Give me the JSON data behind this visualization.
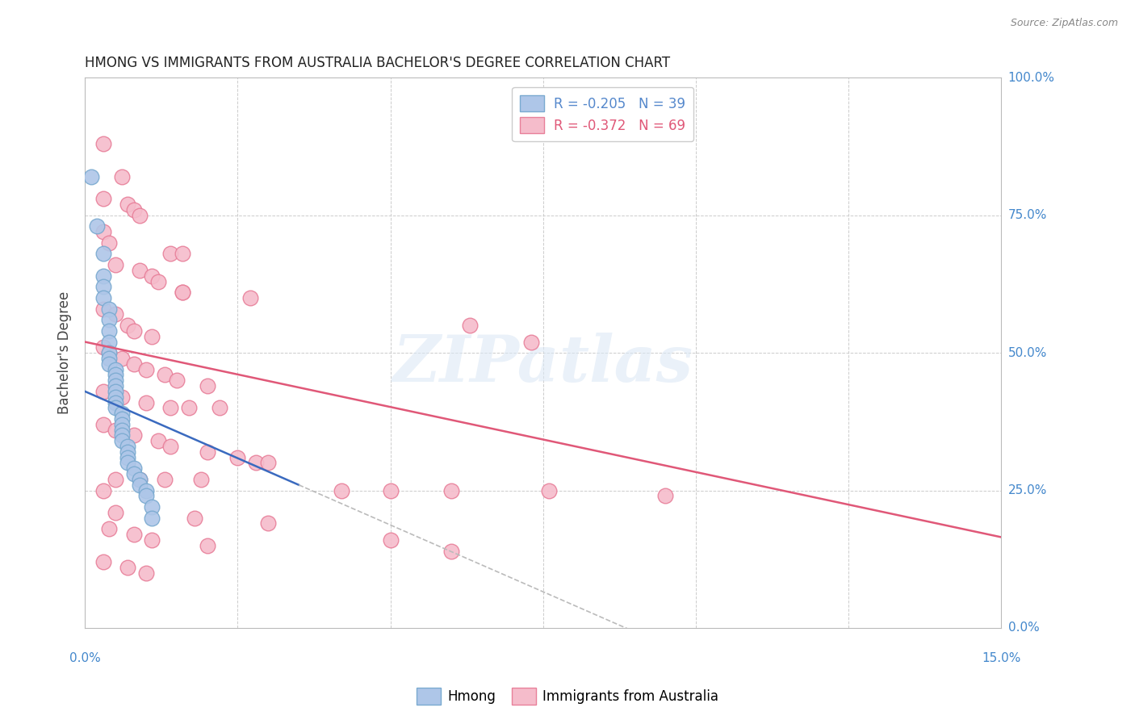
{
  "title": "HMONG VS IMMIGRANTS FROM AUSTRALIA BACHELOR'S DEGREE CORRELATION CHART",
  "source": "Source: ZipAtlas.com",
  "ylabel": "Bachelor's Degree",
  "xmin": 0.0,
  "xmax": 0.15,
  "ymin": 0.0,
  "ymax": 1.0,
  "watermark_text": "ZIPatlas",
  "hmong_color": "#aec6e8",
  "hmong_edge": "#7aaad0",
  "australia_color": "#f5bccb",
  "australia_edge": "#e8809a",
  "hmong_trend_color": "#3a6abf",
  "hmong_trend_dash_color": "#bbbbbb",
  "australia_trend_color": "#e05878",
  "legend_text1": "R = -0.205   N = 39",
  "legend_text2": "R = -0.372   N = 69",
  "legend_color1": "#5588cc",
  "legend_color2": "#e05878",
  "bottom_legend1": "Hmong",
  "bottom_legend2": "Immigrants from Australia",
  "hmong_data": [
    [
      0.001,
      0.82
    ],
    [
      0.002,
      0.73
    ],
    [
      0.003,
      0.68
    ],
    [
      0.003,
      0.64
    ],
    [
      0.003,
      0.62
    ],
    [
      0.003,
      0.6
    ],
    [
      0.004,
      0.58
    ],
    [
      0.004,
      0.56
    ],
    [
      0.004,
      0.54
    ],
    [
      0.004,
      0.52
    ],
    [
      0.004,
      0.5
    ],
    [
      0.004,
      0.49
    ],
    [
      0.004,
      0.48
    ],
    [
      0.005,
      0.47
    ],
    [
      0.005,
      0.46
    ],
    [
      0.005,
      0.45
    ],
    [
      0.005,
      0.44
    ],
    [
      0.005,
      0.43
    ],
    [
      0.005,
      0.42
    ],
    [
      0.005,
      0.41
    ],
    [
      0.005,
      0.4
    ],
    [
      0.006,
      0.39
    ],
    [
      0.006,
      0.38
    ],
    [
      0.006,
      0.37
    ],
    [
      0.006,
      0.36
    ],
    [
      0.006,
      0.35
    ],
    [
      0.006,
      0.34
    ],
    [
      0.007,
      0.33
    ],
    [
      0.007,
      0.32
    ],
    [
      0.007,
      0.31
    ],
    [
      0.007,
      0.3
    ],
    [
      0.008,
      0.29
    ],
    [
      0.008,
      0.28
    ],
    [
      0.009,
      0.27
    ],
    [
      0.009,
      0.26
    ],
    [
      0.01,
      0.25
    ],
    [
      0.01,
      0.24
    ],
    [
      0.011,
      0.22
    ],
    [
      0.011,
      0.2
    ]
  ],
  "australia_data": [
    [
      0.003,
      0.88
    ],
    [
      0.006,
      0.82
    ],
    [
      0.003,
      0.78
    ],
    [
      0.007,
      0.77
    ],
    [
      0.008,
      0.76
    ],
    [
      0.009,
      0.75
    ],
    [
      0.003,
      0.72
    ],
    [
      0.004,
      0.7
    ],
    [
      0.014,
      0.68
    ],
    [
      0.016,
      0.68
    ],
    [
      0.005,
      0.66
    ],
    [
      0.009,
      0.65
    ],
    [
      0.011,
      0.64
    ],
    [
      0.012,
      0.63
    ],
    [
      0.016,
      0.61
    ],
    [
      0.016,
      0.61
    ],
    [
      0.027,
      0.6
    ],
    [
      0.003,
      0.58
    ],
    [
      0.005,
      0.57
    ],
    [
      0.007,
      0.55
    ],
    [
      0.008,
      0.54
    ],
    [
      0.011,
      0.53
    ],
    [
      0.003,
      0.51
    ],
    [
      0.004,
      0.5
    ],
    [
      0.006,
      0.49
    ],
    [
      0.008,
      0.48
    ],
    [
      0.01,
      0.47
    ],
    [
      0.013,
      0.46
    ],
    [
      0.015,
      0.45
    ],
    [
      0.02,
      0.44
    ],
    [
      0.003,
      0.43
    ],
    [
      0.006,
      0.42
    ],
    [
      0.01,
      0.41
    ],
    [
      0.014,
      0.4
    ],
    [
      0.017,
      0.4
    ],
    [
      0.022,
      0.4
    ],
    [
      0.063,
      0.55
    ],
    [
      0.073,
      0.52
    ],
    [
      0.003,
      0.37
    ],
    [
      0.005,
      0.36
    ],
    [
      0.008,
      0.35
    ],
    [
      0.012,
      0.34
    ],
    [
      0.014,
      0.33
    ],
    [
      0.02,
      0.32
    ],
    [
      0.025,
      0.31
    ],
    [
      0.028,
      0.3
    ],
    [
      0.03,
      0.3
    ],
    [
      0.005,
      0.27
    ],
    [
      0.009,
      0.27
    ],
    [
      0.013,
      0.27
    ],
    [
      0.019,
      0.27
    ],
    [
      0.003,
      0.25
    ],
    [
      0.042,
      0.25
    ],
    [
      0.076,
      0.25
    ],
    [
      0.095,
      0.24
    ],
    [
      0.005,
      0.21
    ],
    [
      0.018,
      0.2
    ],
    [
      0.03,
      0.19
    ],
    [
      0.004,
      0.18
    ],
    [
      0.008,
      0.17
    ],
    [
      0.011,
      0.16
    ],
    [
      0.02,
      0.15
    ],
    [
      0.05,
      0.25
    ],
    [
      0.06,
      0.25
    ],
    [
      0.003,
      0.12
    ],
    [
      0.007,
      0.11
    ],
    [
      0.01,
      0.1
    ],
    [
      0.05,
      0.16
    ],
    [
      0.06,
      0.14
    ]
  ],
  "hmong_trend_x0": 0.0,
  "hmong_trend_y0": 0.43,
  "hmong_trend_x1": 0.035,
  "hmong_trend_y1": 0.26,
  "hmong_trend_solid_end": 0.035,
  "hmong_trend_dash_end": 0.13,
  "australia_trend_x0": 0.0,
  "australia_trend_y0": 0.52,
  "australia_trend_x1": 0.15,
  "australia_trend_y1": 0.165
}
